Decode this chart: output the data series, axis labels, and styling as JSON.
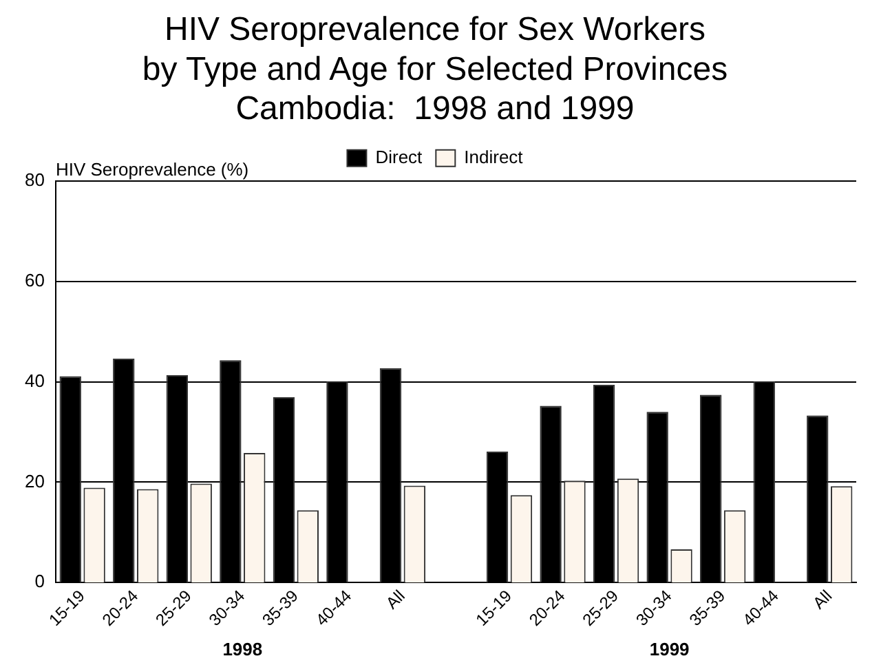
{
  "chart_data": {
    "type": "bar",
    "title": "HIV Seroprevalence for Sex Workers\nby Type and Age for Selected Provinces\nCambodia:  1998 and 1999",
    "ylabel": "HIV Seroprevalence (%)",
    "categories": [
      "15-19",
      "20-24",
      "25-29",
      "30-34",
      "35-39",
      "40-44",
      "All",
      null,
      "15-19",
      "20-24",
      "25-29",
      "30-34",
      "35-39",
      "40-44",
      "All"
    ],
    "series": [
      {
        "name": "Direct",
        "color": "#000000",
        "values": [
          41.1,
          44.6,
          41.3,
          44.3,
          36.9,
          40.1,
          42.7,
          null,
          26.1,
          35.2,
          39.4,
          34.0,
          37.4,
          40.1,
          33.3
        ]
      },
      {
        "name": "Indirect",
        "color": "#fdf5ec",
        "values": [
          18.9,
          18.6,
          19.7,
          25.8,
          14.4,
          0,
          19.3,
          null,
          17.4,
          20.3,
          20.7,
          6.6,
          14.4,
          0,
          19.2
        ]
      }
    ],
    "ylim": [
      0,
      80
    ],
    "yticks": [
      0,
      20,
      40,
      60,
      80
    ],
    "grid": "y",
    "legend": "top",
    "annotations": [
      "1998",
      "1999"
    ]
  }
}
